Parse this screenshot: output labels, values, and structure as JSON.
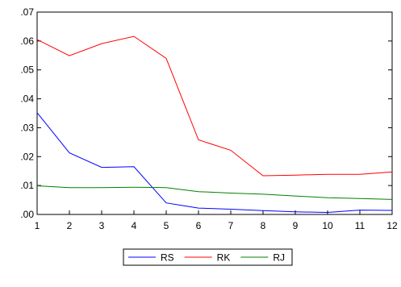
{
  "chart_data": {
    "type": "line",
    "title": "",
    "xlabel": "",
    "ylabel": "",
    "x": [
      1,
      2,
      3,
      4,
      5,
      6,
      7,
      8,
      9,
      10,
      11,
      12
    ],
    "xlim": [
      1,
      12
    ],
    "ylim": [
      0,
      0.07
    ],
    "y_ticks": [
      {
        "value": 0.0,
        "label": ".00"
      },
      {
        "value": 0.01,
        "label": ".01"
      },
      {
        "value": 0.02,
        "label": ".02"
      },
      {
        "value": 0.03,
        "label": ".03"
      },
      {
        "value": 0.04,
        "label": ".04"
      },
      {
        "value": 0.05,
        "label": ".05"
      },
      {
        "value": 0.06,
        "label": ".06"
      },
      {
        "value": 0.07,
        "label": ".07"
      }
    ],
    "x_tick_labels": [
      "1",
      "2",
      "3",
      "4",
      "5",
      "6",
      "7",
      "8",
      "9",
      "10",
      "11",
      "12"
    ],
    "grid": false,
    "legend_position": "bottom-center",
    "series": [
      {
        "name": "RS",
        "color": "#0000ff",
        "values": [
          0.0352,
          0.0213,
          0.0163,
          0.0165,
          0.004,
          0.0022,
          0.0018,
          0.0013,
          0.0009,
          0.0007,
          0.0015,
          0.0014
        ]
      },
      {
        "name": "RK",
        "color": "#ff0000",
        "values": [
          0.0605,
          0.0549,
          0.0591,
          0.0616,
          0.054,
          0.0258,
          0.0222,
          0.0134,
          0.0136,
          0.0139,
          0.0139,
          0.0147
        ]
      },
      {
        "name": "RJ",
        "color": "#008000",
        "values": [
          0.0099,
          0.0093,
          0.0093,
          0.0094,
          0.0093,
          0.0079,
          0.0074,
          0.007,
          0.0064,
          0.0058,
          0.0055,
          0.0052
        ]
      }
    ]
  }
}
